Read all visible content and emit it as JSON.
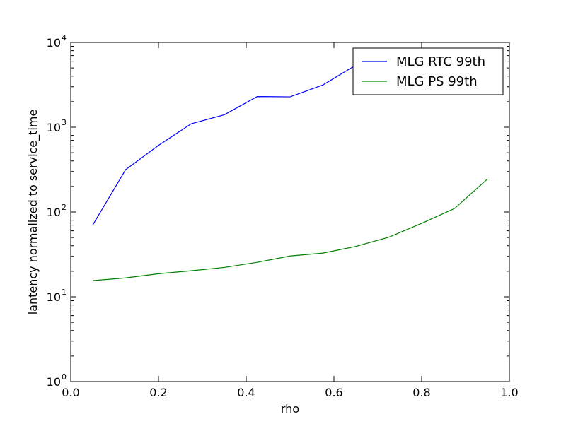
{
  "chart_data": {
    "type": "line",
    "xlabel": "rho",
    "ylabel": "lantency normalized to service_time",
    "xlim": [
      0.0,
      1.0
    ],
    "ylim": [
      1,
      10000
    ],
    "yscale": "log",
    "x_ticks": [
      "0.0",
      "0.2",
      "0.4",
      "0.6",
      "0.8",
      "1.0"
    ],
    "y_ticks": [
      {
        "base": "10",
        "exp": "0"
      },
      {
        "base": "10",
        "exp": "1"
      },
      {
        "base": "10",
        "exp": "2"
      },
      {
        "base": "10",
        "exp": "3"
      },
      {
        "base": "10",
        "exp": "4"
      }
    ],
    "grid": false,
    "legend_position": "top-right",
    "series": [
      {
        "name": "MLG RTC 99th",
        "color": "#0000ff",
        "x": [
          0.05,
          0.125,
          0.2,
          0.275,
          0.35,
          0.425,
          0.5,
          0.575,
          0.65,
          0.725
        ],
        "y": [
          70,
          315,
          610,
          1100,
          1400,
          2300,
          2280,
          3150,
          5400,
          8000
        ]
      },
      {
        "name": "MLG PS 99th",
        "color": "#008000",
        "x": [
          0.05,
          0.125,
          0.2,
          0.275,
          0.35,
          0.425,
          0.5,
          0.575,
          0.65,
          0.725,
          0.8,
          0.875,
          0.95
        ],
        "y": [
          15.5,
          16.7,
          18.7,
          20.3,
          22.2,
          25.5,
          30.3,
          32.8,
          39.3,
          50.4,
          73.5,
          110,
          245
        ]
      }
    ]
  }
}
